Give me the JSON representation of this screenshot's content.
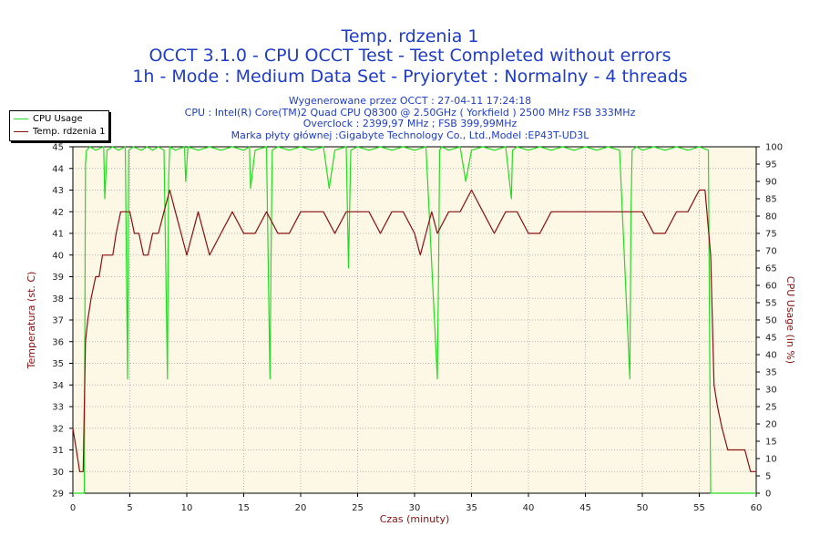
{
  "header": {
    "title": "Temp. rdzenia 1",
    "line2": "OCCT 3.1.0 - CPU OCCT Test - Test Completed without errors",
    "line3": "1h - Mode : Medium Data Set - Pryiorytet : Normalny - 4 threads",
    "info1": "Wygenerowane przez OCCT : 27-04-11 17:24:18",
    "info2": "CPU : Intel(R) Core(TM)2 Quad CPU Q8300 @ 2.50GHz ( Yorkfield ) 2500 MHz FSB 333MHz",
    "info3": "Overclock : 2399,97 MHz ; FSB 399,99MHz",
    "info4": "Marka płyty głównej :Gigabyte Technology Co., Ltd.,Model :EP43T-UD3L"
  },
  "colors": {
    "plot_bg": "#fdf8e6",
    "grid": "#b4b4b4",
    "cpu_usage": "#22dd22",
    "temperature": "#8b1010",
    "axis_left": "#8b1010",
    "axis_right": "#8b1010",
    "title": "#1e3cc8"
  },
  "legend": {
    "items": [
      {
        "label": "CPU Usage",
        "color": "#22dd22"
      },
      {
        "label": "Temp. rdzenia 1",
        "color": "#8b1010"
      }
    ]
  },
  "chart_data": {
    "type": "line",
    "title": "Temp. rdzenia 1",
    "xlabel": "Czas (minuty)",
    "ylabel": "Temperatura (st. C)",
    "y2label": "CPU Usage (in %)",
    "xlim": [
      0,
      60
    ],
    "ylim": [
      29,
      45
    ],
    "y2lim": [
      0,
      100
    ],
    "xticks": [
      0,
      5,
      10,
      15,
      20,
      25,
      30,
      35,
      40,
      45,
      50,
      55,
      60
    ],
    "yticks": [
      29,
      30,
      31,
      32,
      33,
      34,
      35,
      36,
      37,
      38,
      39,
      40,
      41,
      42,
      43,
      44,
      45
    ],
    "y2ticks": [
      0,
      5,
      10,
      15,
      20,
      25,
      30,
      35,
      40,
      45,
      50,
      55,
      60,
      65,
      70,
      75,
      80,
      85,
      90,
      95,
      100
    ],
    "grid": true,
    "legend_position": "top-left",
    "series": [
      {
        "name": "CPU Usage",
        "axis": "right",
        "x": [
          0,
          0.8,
          1.0,
          1.1,
          1.2,
          1.5,
          2.0,
          2.7,
          2.8,
          3.0,
          3.5,
          4.0,
          4.6,
          4.8,
          4.9,
          5.3,
          6.0,
          6.5,
          7.0,
          7.5,
          8.0,
          8.3,
          8.4,
          8.5,
          9.0,
          9.8,
          9.9,
          10.1,
          11.0,
          12.0,
          13.0,
          14.0,
          15.0,
          15.5,
          15.6,
          16.0,
          17.0,
          17.3,
          17.4,
          17.5,
          18.0,
          19.0,
          20.0,
          21.0,
          22.0,
          22.5,
          23.0,
          24.0,
          24.2,
          24.4,
          25.0,
          26.0,
          27.0,
          28.0,
          29.0,
          30.0,
          31.0,
          32.0,
          32.1,
          32.2,
          32.4,
          33.0,
          34.0,
          34.5,
          35.0,
          36.0,
          37.0,
          38.0,
          38.5,
          38.6,
          39.0,
          40.0,
          41.0,
          42.0,
          43.0,
          44.0,
          45.0,
          46.0,
          47.0,
          48.0,
          48.9,
          49.0,
          49.1,
          49.5,
          50.0,
          51.0,
          52.0,
          53.0,
          54.0,
          55.0,
          55.8,
          56.0,
          56.1,
          56.2,
          57.0,
          58.0,
          59.0,
          60.0
        ],
        "values": [
          0,
          0,
          0,
          95,
          99,
          100,
          99,
          100,
          85,
          99,
          100,
          99,
          100,
          33,
          99,
          100,
          99,
          100,
          99,
          100,
          99,
          33,
          90,
          100,
          99,
          100,
          90,
          100,
          99,
          100,
          99,
          100,
          99,
          100,
          88,
          99,
          100,
          33,
          68,
          99,
          100,
          99,
          100,
          99,
          100,
          88,
          99,
          100,
          65,
          99,
          100,
          99,
          100,
          99,
          100,
          99,
          100,
          33,
          62,
          99,
          100,
          99,
          100,
          90,
          99,
          100,
          99,
          100,
          85,
          99,
          100,
          99,
          100,
          99,
          100,
          99,
          100,
          99,
          100,
          99,
          33,
          80,
          99,
          100,
          99,
          100,
          99,
          100,
          99,
          100,
          99,
          0,
          0,
          0,
          0,
          0,
          0,
          0
        ]
      },
      {
        "name": "Temp. rdzenia 1",
        "axis": "left",
        "x": [
          0,
          0.3,
          0.6,
          0.9,
          1.1,
          1.3,
          1.6,
          2.0,
          2.3,
          2.6,
          3.0,
          3.5,
          3.8,
          4.2,
          4.6,
          5.0,
          5.4,
          5.8,
          6.2,
          6.6,
          7.0,
          7.5,
          8.0,
          8.5,
          9.0,
          9.5,
          10.0,
          10.5,
          11.0,
          12.0,
          13.0,
          14.0,
          15.0,
          16.0,
          17.0,
          18.0,
          19.0,
          20.0,
          21.0,
          22.0,
          23.0,
          24.0,
          25.0,
          26.0,
          27.0,
          28.0,
          29.0,
          30.0,
          30.5,
          31.0,
          31.5,
          32.0,
          33.0,
          34.0,
          35.0,
          36.0,
          37.0,
          38.0,
          39.0,
          40.0,
          41.0,
          42.0,
          43.0,
          44.0,
          45.0,
          46.0,
          47.0,
          48.0,
          49.0,
          50.0,
          51.0,
          52.0,
          53.0,
          54.0,
          55.0,
          55.5,
          56.0,
          56.3,
          56.6,
          57.0,
          57.5,
          58.0,
          59.0,
          59.5,
          60.0
        ],
        "values": [
          32,
          31,
          30,
          30,
          36,
          37,
          38,
          39,
          39,
          40,
          40,
          40,
          41,
          42,
          42,
          42,
          41,
          41,
          40,
          40,
          41,
          41,
          42,
          43,
          42,
          41,
          40,
          41,
          42,
          40,
          41,
          42,
          41,
          41,
          42,
          41,
          41,
          42,
          42,
          42,
          41,
          42,
          42,
          42,
          41,
          42,
          42,
          41,
          40,
          41,
          42,
          41,
          42,
          42,
          43,
          42,
          41,
          42,
          42,
          41,
          41,
          42,
          42,
          42,
          42,
          42,
          42,
          42,
          42,
          42,
          41,
          41,
          42,
          42,
          43,
          43,
          40,
          34,
          33,
          32,
          31,
          31,
          31,
          30,
          30
        ]
      }
    ]
  }
}
